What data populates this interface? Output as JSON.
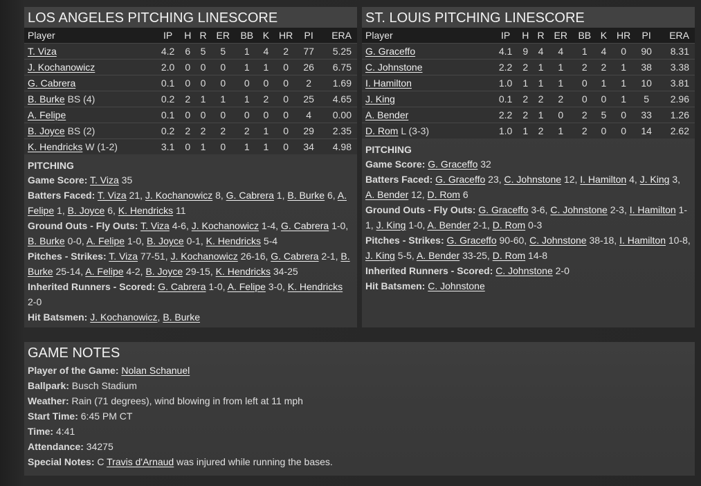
{
  "columns": [
    "Player",
    "IP",
    "H",
    "R",
    "ER",
    "BB",
    "K",
    "HR",
    "PI",
    "ERA"
  ],
  "teams": [
    {
      "title": "LOS ANGELES PITCHING LINESCORE",
      "rows": [
        [
          "T. Viza",
          "",
          "4.2",
          "6",
          "5",
          "5",
          "1",
          "4",
          "2",
          "77",
          "5.25"
        ],
        [
          "J. Kochanowicz",
          "",
          "2.0",
          "0",
          "0",
          "0",
          "1",
          "1",
          "0",
          "26",
          "6.75"
        ],
        [
          "G. Cabrera",
          "",
          "0.1",
          "0",
          "0",
          "0",
          "0",
          "0",
          "0",
          "2",
          "1.69"
        ],
        [
          "B. Burke",
          " BS (4)",
          "0.2",
          "2",
          "1",
          "1",
          "1",
          "2",
          "0",
          "25",
          "4.65"
        ],
        [
          "A. Felipe",
          "",
          "0.1",
          "0",
          "0",
          "0",
          "0",
          "0",
          "0",
          "4",
          "0.00"
        ],
        [
          "B. Joyce",
          " BS (2)",
          "0.2",
          "2",
          "2",
          "2",
          "2",
          "1",
          "0",
          "29",
          "2.35"
        ],
        [
          "K. Hendricks",
          " W (1-2)",
          "3.1",
          "0",
          "1",
          "0",
          "1",
          "1",
          "0",
          "34",
          "4.98"
        ]
      ],
      "pitching_heading": "PITCHING",
      "notes": [
        {
          "label": "Game Score:",
          "parts": [
            [
              " ",
              0
            ],
            [
              "T. Viza",
              1
            ],
            [
              " 35",
              0
            ]
          ]
        },
        {
          "label": "Batters Faced:",
          "parts": [
            [
              " ",
              0
            ],
            [
              "T. Viza",
              1
            ],
            [
              " 21, ",
              0
            ],
            [
              "J. Kochanowicz",
              1
            ],
            [
              " 8, ",
              0
            ],
            [
              "G. Cabrera",
              1
            ],
            [
              " 1, ",
              0
            ],
            [
              "B. Burke",
              1
            ],
            [
              " 6, ",
              0
            ],
            [
              "A. Felipe",
              1
            ],
            [
              " 1, ",
              0
            ],
            [
              "B. Joyce",
              1
            ],
            [
              " 6, ",
              0
            ],
            [
              "K. Hendricks",
              1
            ],
            [
              " 11",
              0
            ]
          ]
        },
        {
          "label": "Ground Outs - Fly Outs:",
          "parts": [
            [
              " ",
              0
            ],
            [
              "T. Viza",
              1
            ],
            [
              " 4-6, ",
              0
            ],
            [
              "J. Kochanowicz",
              1
            ],
            [
              " 1-4, ",
              0
            ],
            [
              "G. Cabrera",
              1
            ],
            [
              " 1-0, ",
              0
            ],
            [
              "B. Burke",
              1
            ],
            [
              " 0-0, ",
              0
            ],
            [
              "A. Felipe",
              1
            ],
            [
              " 1-0, ",
              0
            ],
            [
              "B. Joyce",
              1
            ],
            [
              " 0-1, ",
              0
            ],
            [
              "K. Hendricks",
              1
            ],
            [
              " 5-4",
              0
            ]
          ]
        },
        {
          "label": "Pitches - Strikes:",
          "parts": [
            [
              " ",
              0
            ],
            [
              "T. Viza",
              1
            ],
            [
              " 77-51, ",
              0
            ],
            [
              "J. Kochanowicz",
              1
            ],
            [
              " 26-16, ",
              0
            ],
            [
              "G. Cabrera",
              1
            ],
            [
              " 2-1, ",
              0
            ],
            [
              "B. Burke",
              1
            ],
            [
              " 25-14, ",
              0
            ],
            [
              "A. Felipe",
              1
            ],
            [
              " 4-2, ",
              0
            ],
            [
              "B. Joyce",
              1
            ],
            [
              " 29-15, ",
              0
            ],
            [
              "K. Hendricks",
              1
            ],
            [
              " 34-25",
              0
            ]
          ]
        },
        {
          "label": "Inherited Runners - Scored:",
          "parts": [
            [
              " ",
              0
            ],
            [
              "G. Cabrera",
              1
            ],
            [
              " 1-0, ",
              0
            ],
            [
              "A. Felipe",
              1
            ],
            [
              " 3-0, ",
              0
            ],
            [
              "K. Hendricks",
              1
            ],
            [
              " 2-0",
              0
            ]
          ]
        },
        {
          "label": "Hit Batsmen:",
          "parts": [
            [
              " ",
              0
            ],
            [
              "J. Kochanowicz",
              1
            ],
            [
              ", ",
              0
            ],
            [
              "B. Burke",
              1
            ]
          ]
        }
      ]
    },
    {
      "title": "ST. LOUIS PITCHING LINESCORE",
      "rows": [
        [
          "G. Graceffo",
          "",
          "4.1",
          "9",
          "4",
          "4",
          "1",
          "4",
          "0",
          "90",
          "8.31"
        ],
        [
          "C. Johnstone",
          "",
          "2.2",
          "2",
          "1",
          "1",
          "2",
          "2",
          "1",
          "38",
          "3.38"
        ],
        [
          "I. Hamilton",
          "",
          "1.0",
          "1",
          "1",
          "1",
          "0",
          "1",
          "1",
          "10",
          "3.81"
        ],
        [
          "J. King",
          "",
          "0.1",
          "2",
          "2",
          "2",
          "0",
          "0",
          "1",
          "5",
          "2.96"
        ],
        [
          "A. Bender",
          "",
          "2.2",
          "2",
          "1",
          "0",
          "2",
          "5",
          "0",
          "33",
          "1.26"
        ],
        [
          "D. Rom",
          " L (3-3)",
          "1.0",
          "1",
          "2",
          "1",
          "2",
          "0",
          "0",
          "14",
          "2.62"
        ]
      ],
      "pitching_heading": "PITCHING",
      "notes": [
        {
          "label": "Game Score:",
          "parts": [
            [
              " ",
              0
            ],
            [
              "G. Graceffo",
              1
            ],
            [
              " 32",
              0
            ]
          ]
        },
        {
          "label": "Batters Faced:",
          "parts": [
            [
              " ",
              0
            ],
            [
              "G. Graceffo",
              1
            ],
            [
              " 23, ",
              0
            ],
            [
              "C. Johnstone",
              1
            ],
            [
              " 12, ",
              0
            ],
            [
              "I. Hamilton",
              1
            ],
            [
              " 4, ",
              0
            ],
            [
              "J. King",
              1
            ],
            [
              " 3, ",
              0
            ],
            [
              "A. Bender",
              1
            ],
            [
              " 12, ",
              0
            ],
            [
              "D. Rom",
              1
            ],
            [
              " 6",
              0
            ]
          ]
        },
        {
          "label": "Ground Outs - Fly Outs:",
          "parts": [
            [
              " ",
              0
            ],
            [
              "G. Graceffo",
              1
            ],
            [
              " 3-6, ",
              0
            ],
            [
              "C. Johnstone",
              1
            ],
            [
              " 2-3, ",
              0
            ],
            [
              "I. Hamilton",
              1
            ],
            [
              " 1-1, ",
              0
            ],
            [
              "J. King",
              1
            ],
            [
              " 1-0, ",
              0
            ],
            [
              "A. Bender",
              1
            ],
            [
              " 2-1, ",
              0
            ],
            [
              "D. Rom",
              1
            ],
            [
              " 0-3",
              0
            ]
          ]
        },
        {
          "label": "Pitches - Strikes:",
          "parts": [
            [
              " ",
              0
            ],
            [
              "G. Graceffo",
              1
            ],
            [
              " 90-60, ",
              0
            ],
            [
              "C. Johnstone",
              1
            ],
            [
              " 38-18, ",
              0
            ],
            [
              "I. Hamilton",
              1
            ],
            [
              " 10-8, ",
              0
            ],
            [
              "J. King",
              1
            ],
            [
              " 5-5, ",
              0
            ],
            [
              "A. Bender",
              1
            ],
            [
              " 33-25, ",
              0
            ],
            [
              "D. Rom",
              1
            ],
            [
              " 14-8",
              0
            ]
          ]
        },
        {
          "label": "Inherited Runners - Scored:",
          "parts": [
            [
              " ",
              0
            ],
            [
              "C. Johnstone",
              1
            ],
            [
              " 2-0",
              0
            ]
          ]
        },
        {
          "label": "Hit Batsmen:",
          "parts": [
            [
              " ",
              0
            ],
            [
              "C. Johnstone",
              1
            ]
          ]
        }
      ]
    }
  ],
  "game_notes": {
    "title": "GAME NOTES",
    "lines": [
      {
        "label": "Player of the Game:",
        "parts": [
          [
            " ",
            0
          ],
          [
            "Nolan Schanuel",
            1
          ]
        ]
      },
      {
        "label": "Ballpark:",
        "parts": [
          [
            " Busch Stadium",
            0
          ]
        ]
      },
      {
        "label": "Weather:",
        "parts": [
          [
            " Rain (71 degrees), wind blowing in from left at 11 mph",
            0
          ]
        ]
      },
      {
        "label": "Start Time:",
        "parts": [
          [
            " 6:45 PM CT",
            0
          ]
        ]
      },
      {
        "label": "Time:",
        "parts": [
          [
            " 4:41",
            0
          ]
        ]
      },
      {
        "label": "Attendance:",
        "parts": [
          [
            " 34275",
            0
          ]
        ]
      },
      {
        "label": "Special Notes:",
        "parts": [
          [
            " C ",
            0
          ],
          [
            "Travis d'Arnaud",
            1
          ],
          [
            " was injured while running the bases.",
            0
          ]
        ]
      }
    ]
  }
}
